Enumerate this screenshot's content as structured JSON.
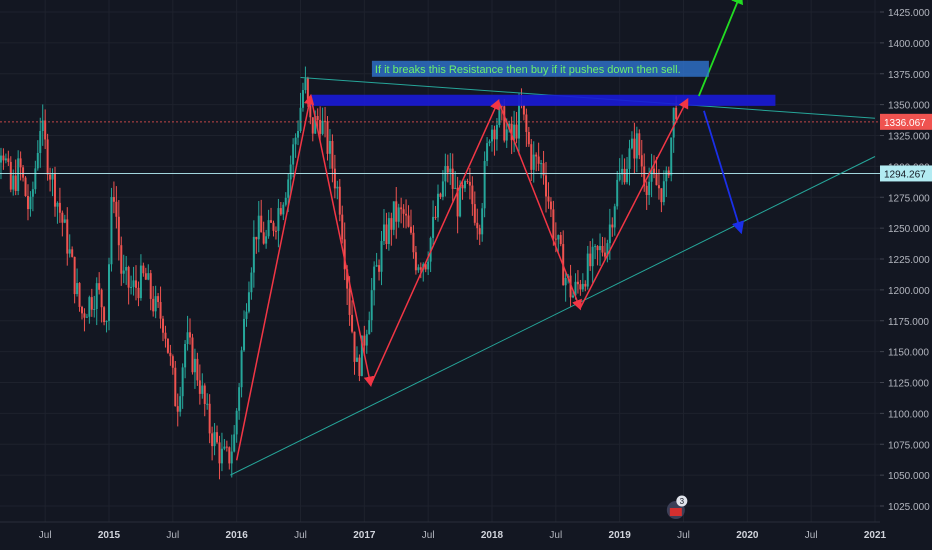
{
  "chart_data": {
    "type": "candlestick",
    "background": "#131722",
    "grid": true,
    "up_color": "#26a69a",
    "down_color": "#ef5350",
    "ylim": [
      1012,
      1442
    ],
    "y_ticks": [
      "1025.000",
      "1050.000",
      "1075.000",
      "1100.000",
      "1125.000",
      "1150.000",
      "1175.000",
      "1200.000",
      "1225.000",
      "1250.000",
      "1275.000",
      "1300.000",
      "1325.000",
      "1350.000",
      "1375.000",
      "1400.000",
      "1425.000"
    ],
    "x_ticks": [
      {
        "label": "Jul",
        "t": 2014.5,
        "bold": false
      },
      {
        "label": "2015",
        "t": 2015.0,
        "bold": true
      },
      {
        "label": "Jul",
        "t": 2015.5,
        "bold": false
      },
      {
        "label": "2016",
        "t": 2016.0,
        "bold": true
      },
      {
        "label": "Jul",
        "t": 2016.5,
        "bold": false
      },
      {
        "label": "2017",
        "t": 2017.0,
        "bold": true
      },
      {
        "label": "Jul",
        "t": 2017.5,
        "bold": false
      },
      {
        "label": "2018",
        "t": 2018.0,
        "bold": true
      },
      {
        "label": "Jul",
        "t": 2018.5,
        "bold": false
      },
      {
        "label": "2019",
        "t": 2019.0,
        "bold": true
      },
      {
        "label": "Jul",
        "t": 2019.5,
        "bold": false
      },
      {
        "label": "2020",
        "t": 2020.0,
        "bold": true
      },
      {
        "label": "Jul",
        "t": 2020.5,
        "bold": false
      },
      {
        "label": "2021",
        "t": 2021.0,
        "bold": true
      }
    ],
    "price_path": [
      [
        2014.0,
        1330
      ],
      [
        2014.03,
        1385
      ],
      [
        2014.08,
        1300
      ],
      [
        2014.18,
        1320
      ],
      [
        2014.25,
        1280
      ],
      [
        2014.32,
        1300
      ],
      [
        2014.4,
        1260
      ],
      [
        2014.48,
        1335
      ],
      [
        2014.55,
        1300
      ],
      [
        2014.62,
        1270
      ],
      [
        2014.7,
        1235
      ],
      [
        2014.8,
        1180
      ],
      [
        2014.92,
        1200
      ],
      [
        2015.0,
        1180
      ],
      [
        2015.05,
        1290
      ],
      [
        2015.12,
        1210
      ],
      [
        2015.2,
        1200
      ],
      [
        2015.3,
        1210
      ],
      [
        2015.38,
        1185
      ],
      [
        2015.45,
        1175
      ],
      [
        2015.55,
        1105
      ],
      [
        2015.62,
        1160
      ],
      [
        2015.72,
        1130
      ],
      [
        2015.8,
        1090
      ],
      [
        2015.9,
        1065
      ],
      [
        2015.95,
        1062
      ],
      [
        2016.0,
        1080
      ],
      [
        2016.1,
        1200
      ],
      [
        2016.17,
        1250
      ],
      [
        2016.25,
        1240
      ],
      [
        2016.33,
        1260
      ],
      [
        2016.42,
        1290
      ],
      [
        2016.5,
        1335
      ],
      [
        2016.55,
        1370
      ],
      [
        2016.6,
        1330
      ],
      [
        2016.67,
        1340
      ],
      [
        2016.75,
        1310
      ],
      [
        2016.83,
        1270
      ],
      [
        2016.9,
        1190
      ],
      [
        2016.96,
        1135
      ],
      [
        2017.0,
        1150
      ],
      [
        2017.08,
        1200
      ],
      [
        2017.17,
        1240
      ],
      [
        2017.25,
        1260
      ],
      [
        2017.33,
        1260
      ],
      [
        2017.42,
        1225
      ],
      [
        2017.5,
        1225
      ],
      [
        2017.58,
        1260
      ],
      [
        2017.67,
        1300
      ],
      [
        2017.75,
        1270
      ],
      [
        2017.83,
        1280
      ],
      [
        2017.92,
        1255
      ],
      [
        2018.0,
        1330
      ],
      [
        2018.08,
        1340
      ],
      [
        2018.17,
        1320
      ],
      [
        2018.25,
        1345
      ],
      [
        2018.33,
        1305
      ],
      [
        2018.42,
        1300
      ],
      [
        2018.5,
        1250
      ],
      [
        2018.58,
        1215
      ],
      [
        2018.65,
        1195
      ],
      [
        2018.75,
        1215
      ],
      [
        2018.83,
        1225
      ],
      [
        2018.92,
        1240
      ],
      [
        2019.0,
        1285
      ],
      [
        2019.08,
        1305
      ],
      [
        2019.15,
        1320
      ],
      [
        2019.22,
        1290
      ],
      [
        2019.3,
        1285
      ],
      [
        2019.38,
        1280
      ],
      [
        2019.45,
        1350
      ]
    ],
    "annotation": "If it breaks this Resistance then buy if it pushes down then sell.",
    "annotation_t": 2018.25,
    "annotation_price": 1379,
    "price_labels": [
      {
        "value": "1336.067",
        "price": 1336.067,
        "bg": "#ef5350",
        "line": "#ef5350"
      },
      {
        "value": "1294.267",
        "price": 1294.267,
        "bg": "#b2ebf2",
        "line": "#b2ebf2"
      }
    ],
    "resistance_zone": {
      "t1": 2016.58,
      "t2": 2020.22,
      "p1": 1349,
      "p2": 1358,
      "color": "#1a1ad6"
    },
    "falling_trendline": {
      "points": [
        [
          2016.5,
          1372
        ],
        [
          2021.0,
          1339
        ]
      ],
      "color": "#26a69a"
    },
    "rising_trendline": {
      "points": [
        [
          2015.95,
          1050
        ],
        [
          2021.0,
          1308
        ]
      ],
      "color": "#26a69a"
    },
    "red_arrows": [
      [
        [
          2016.0,
          1062
        ],
        [
          2016.58,
          1357
        ]
      ],
      [
        [
          2016.58,
          1357
        ],
        [
          2017.05,
          1123
        ]
      ],
      [
        [
          2017.05,
          1123
        ],
        [
          2018.05,
          1353
        ]
      ],
      [
        [
          2018.05,
          1353
        ],
        [
          2018.69,
          1185
        ]
      ],
      [
        [
          2018.69,
          1185
        ],
        [
          2019.53,
          1354
        ]
      ]
    ],
    "green_arrow": [
      [
        2019.62,
        1357
      ],
      [
        2019.95,
        1440
      ]
    ],
    "blue_arrow": [
      [
        2019.66,
        1345
      ],
      [
        2019.95,
        1247
      ]
    ],
    "flag_badge": "3",
    "flag_t": 2019.44
  }
}
